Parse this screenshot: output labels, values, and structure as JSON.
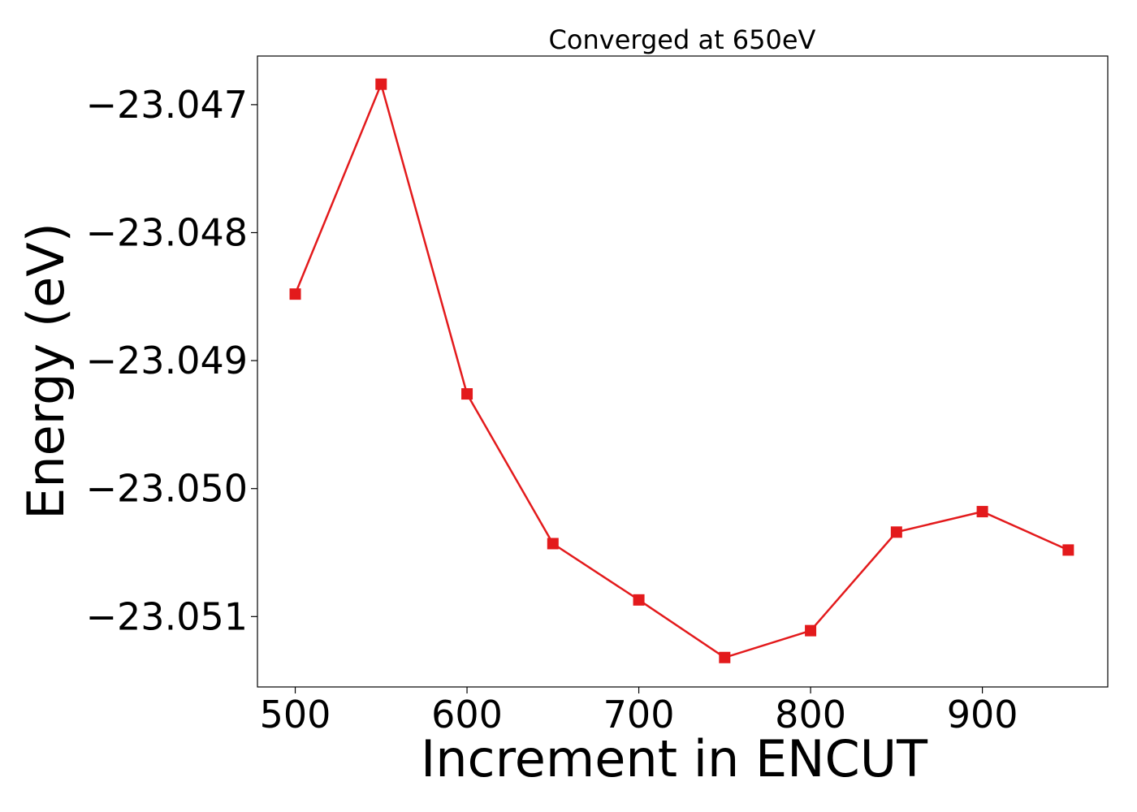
{
  "chart_data": {
    "type": "line",
    "title": "Converged at 650eV",
    "xlabel": "Increment in ENCUT",
    "ylabel": "Energy (eV)",
    "x": [
      500,
      550,
      600,
      650,
      700,
      750,
      800,
      850,
      900,
      950
    ],
    "series": [
      {
        "color": "#e31a1c",
        "marker": "square",
        "values": [
          -23.04848,
          -23.04684,
          -23.04926,
          -23.05043,
          -23.05087,
          -23.05132,
          -23.05111,
          -23.05034,
          -23.05018,
          -23.05048
        ]
      }
    ],
    "xlim": [
      478,
      973
    ],
    "ylim": [
      -23.05155,
      -23.04662
    ],
    "xticks": [
      500,
      600,
      700,
      800,
      900
    ],
    "xtick_labels": [
      "500",
      "600",
      "700",
      "800",
      "900"
    ],
    "yticks": [
      -23.047,
      -23.048,
      -23.049,
      -23.05,
      -23.051
    ],
    "ytick_labels": [
      "−23.047",
      "−23.048",
      "−23.049",
      "−23.050",
      "−23.051"
    ],
    "grid": false,
    "legend": "none"
  }
}
